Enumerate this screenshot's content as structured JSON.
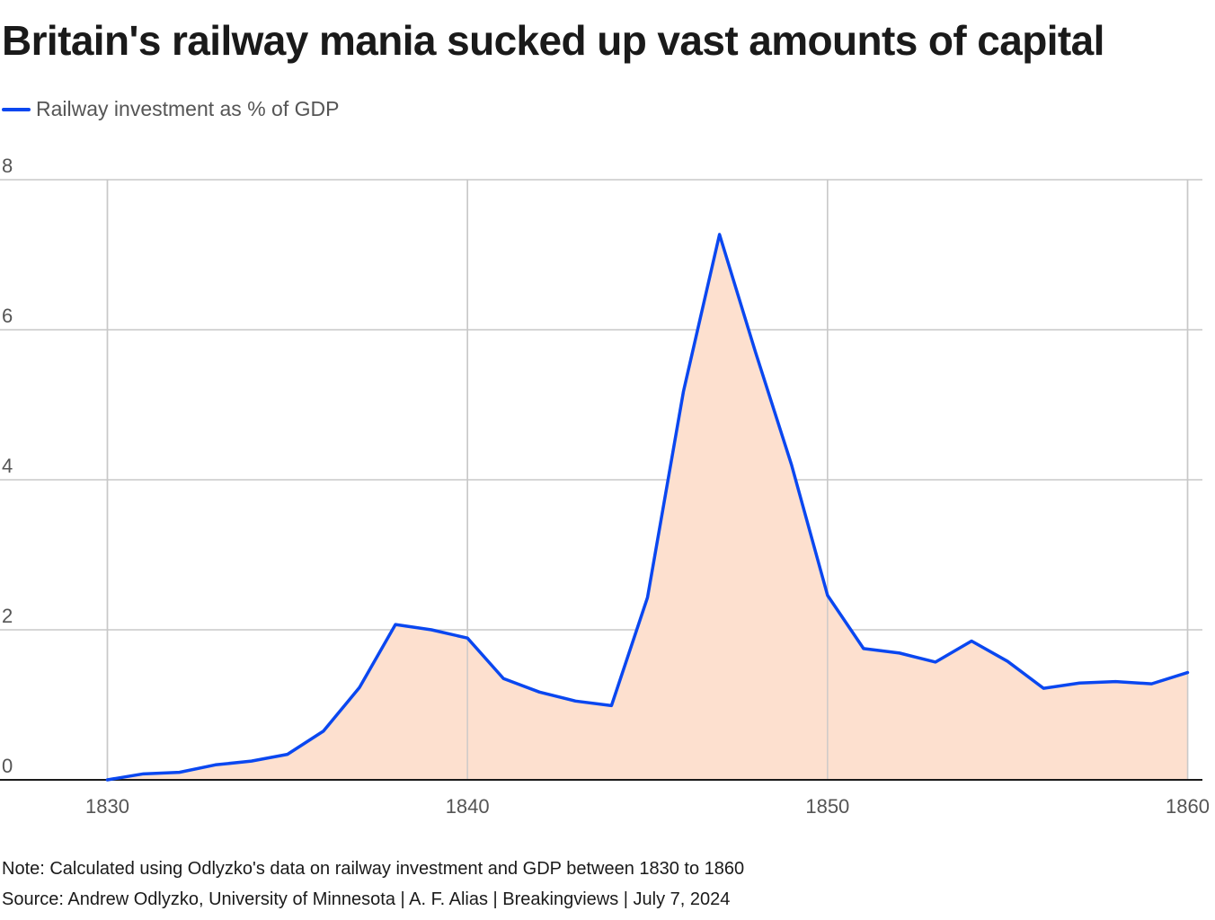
{
  "title": "Britain's railway mania sucked up vast amounts of capital",
  "legend": {
    "label": "Railway investment as % of GDP",
    "color": "#0a47f0"
  },
  "colors": {
    "line": "#0a47f0",
    "fill": "#fde0cf",
    "grid": "#c8c8c8",
    "axis": "#1a1a1a",
    "tick_text": "#555555"
  },
  "chart_data": {
    "type": "area",
    "title": "Britain's railway mania sucked up vast amounts of capital",
    "series": [
      {
        "name": "Railway investment as % of GDP",
        "x": [
          1830,
          1831,
          1832,
          1833,
          1834,
          1835,
          1836,
          1837,
          1838,
          1839,
          1840,
          1841,
          1842,
          1843,
          1844,
          1845,
          1846,
          1847,
          1848,
          1849,
          1850,
          1851,
          1852,
          1853,
          1854,
          1855,
          1856,
          1857,
          1858,
          1859,
          1860
        ],
        "values": [
          0.0,
          0.08,
          0.1,
          0.2,
          0.25,
          0.34,
          0.65,
          1.23,
          2.07,
          2.0,
          1.89,
          1.35,
          1.17,
          1.05,
          0.99,
          2.43,
          5.18,
          7.27,
          5.7,
          4.2,
          2.46,
          1.75,
          1.69,
          1.57,
          1.85,
          1.58,
          1.22,
          1.29,
          1.31,
          1.28,
          1.43
        ]
      }
    ],
    "xlabel": "",
    "ylabel": "",
    "xlim": [
      1830,
      1860
    ],
    "ylim": [
      0,
      8
    ],
    "x_ticks": [
      1830,
      1840,
      1850,
      1860
    ],
    "y_ticks": [
      0,
      2,
      4,
      6,
      8
    ],
    "grid": true
  },
  "footer": {
    "note": "Note: Calculated using Odlyzko's data on railway investment and GDP between 1830 to 1860",
    "source": "Source: Andrew Odlyzko, University of Minnesota | A. F. Alias | Breakingviews | July 7, 2024"
  }
}
